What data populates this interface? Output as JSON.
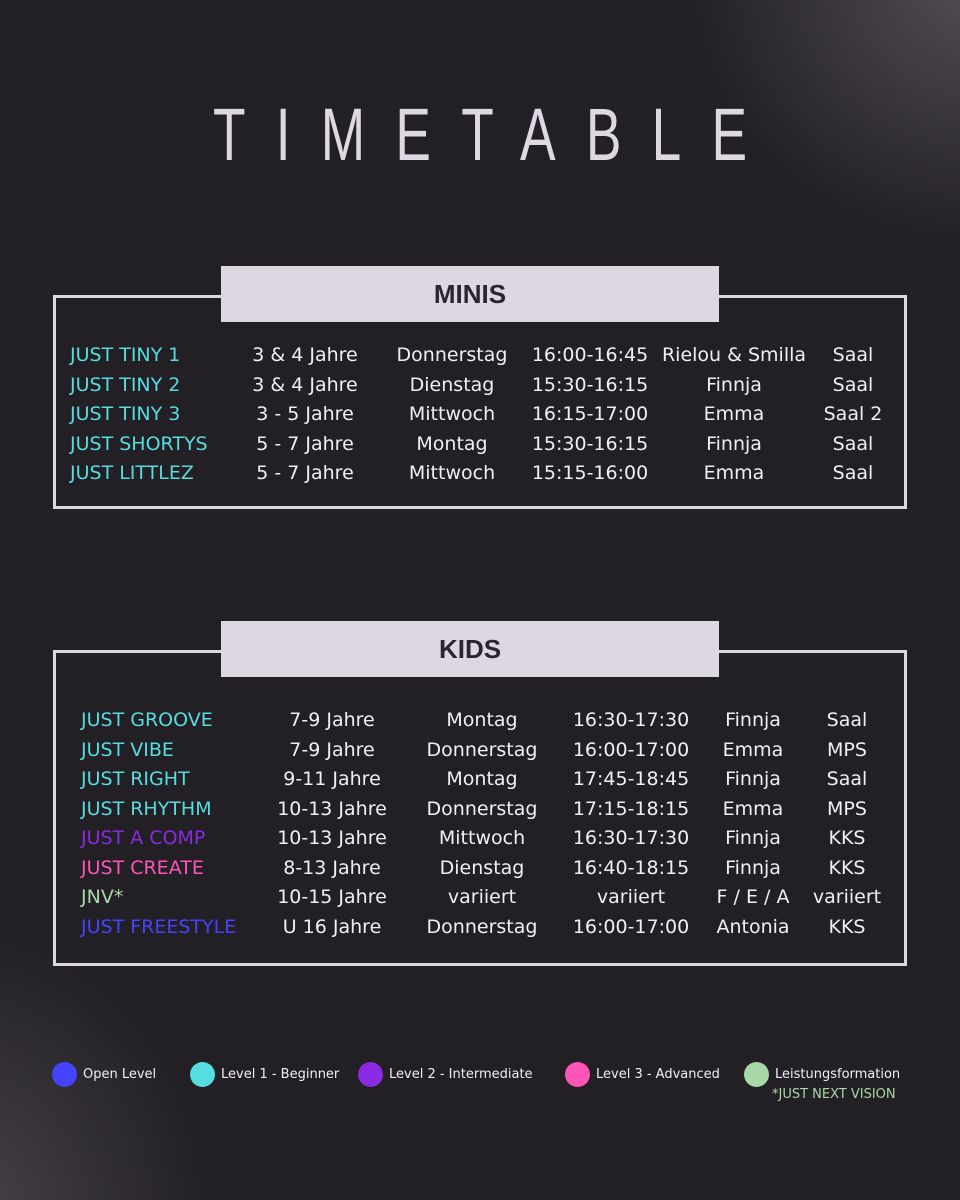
{
  "title": "TIMETABLE",
  "colors": {
    "open": "#4444ff",
    "level1": "#55dde0",
    "level2": "#8a2be2",
    "level3": "#ff55b8",
    "leistung": "#a8d8a8"
  },
  "minis": {
    "label": "MINIS",
    "rows": [
      {
        "name": "JUST TINY 1",
        "level": "level1",
        "age": "3 & 4 Jahre",
        "day": "Donnerstag",
        "time": "16:00-16:45",
        "coach": "Rielou & Smilla",
        "room": "Saal"
      },
      {
        "name": "JUST TINY 2",
        "level": "level1",
        "age": "3 & 4 Jahre",
        "day": "Dienstag",
        "time": "15:30-16:15",
        "coach": "Finnja",
        "room": "Saal"
      },
      {
        "name": "JUST TINY 3",
        "level": "level1",
        "age": "3 - 5 Jahre",
        "day": "Mittwoch",
        "time": "16:15-17:00",
        "coach": "Emma",
        "room": "Saal 2"
      },
      {
        "name": "JUST SHORTYS",
        "level": "level1",
        "age": "5 - 7 Jahre",
        "day": "Montag",
        "time": "15:30-16:15",
        "coach": "Finnja",
        "room": "Saal"
      },
      {
        "name": "JUST LITTLEZ",
        "level": "level1",
        "age": "5 - 7 Jahre",
        "day": "Mittwoch",
        "time": "15:15-16:00",
        "coach": "Emma",
        "room": "Saal"
      }
    ]
  },
  "kids": {
    "label": "KIDS",
    "rows": [
      {
        "name": "JUST GROOVE",
        "level": "level1",
        "age": "7-9 Jahre",
        "day": "Montag",
        "time": "16:30-17:30",
        "coach": "Finnja",
        "room": "Saal"
      },
      {
        "name": "JUST VIBE",
        "level": "level1",
        "age": "7-9 Jahre",
        "day": "Donnerstag",
        "time": "16:00-17:00",
        "coach": "Emma",
        "room": "MPS"
      },
      {
        "name": "JUST RIGHT",
        "level": "level1",
        "age": "9-11 Jahre",
        "day": "Montag",
        "time": "17:45-18:45",
        "coach": "Finnja",
        "room": "Saal"
      },
      {
        "name": "JUST RHYTHM",
        "level": "level1",
        "age": "10-13 Jahre",
        "day": "Donnerstag",
        "time": "17:15-18:15",
        "coach": "Emma",
        "room": "MPS"
      },
      {
        "name": "JUST A COMP",
        "level": "level2",
        "age": "10-13 Jahre",
        "day": "Mittwoch",
        "time": "16:30-17:30",
        "coach": "Finnja",
        "room": "KKS"
      },
      {
        "name": "JUST CREATE",
        "level": "level3",
        "age": "8-13 Jahre",
        "day": "Dienstag",
        "time": "16:40-18:15",
        "coach": "Finnja",
        "room": "KKS"
      },
      {
        "name": "JNV*",
        "level": "leistung",
        "age": "10-15 Jahre",
        "day": "variiert",
        "time": "variiert",
        "coach": "F / E / A",
        "room": "variiert"
      },
      {
        "name": "JUST FREESTYLE",
        "level": "open",
        "age": "U 16 Jahre",
        "day": "Donnerstag",
        "time": "16:00-17:00",
        "coach": "Antonia",
        "room": "KKS"
      }
    ]
  },
  "legend": [
    {
      "key": "open",
      "label": "Open Level"
    },
    {
      "key": "level1",
      "label": "Level 1 - Beginner"
    },
    {
      "key": "level2",
      "label": "Level 2 - Intermediate"
    },
    {
      "key": "level3",
      "label": "Level 3 - Advanced"
    },
    {
      "key": "leistung",
      "label": "Leistungsformation"
    }
  ],
  "legend_note": "*JUST NEXT VISION"
}
